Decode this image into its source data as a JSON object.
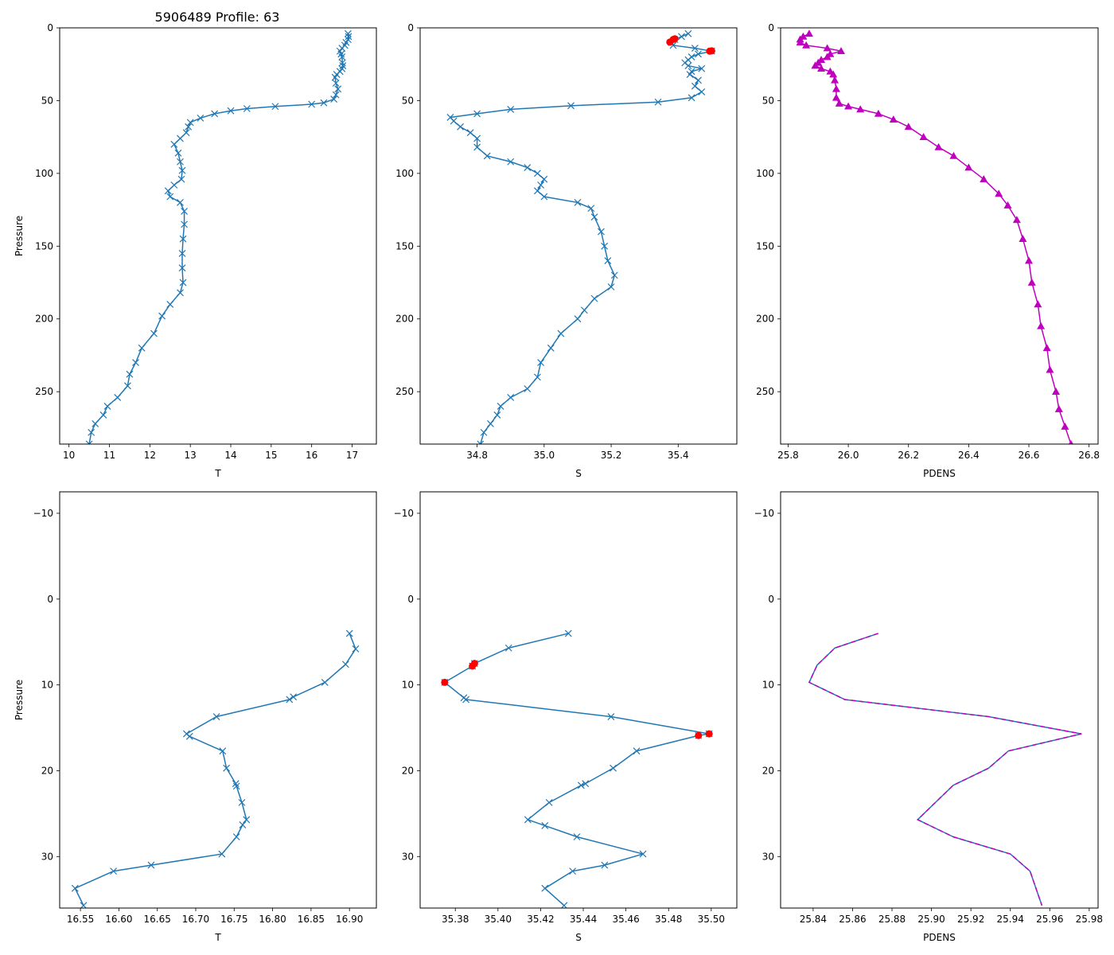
{
  "figure_title": "5906489 Profile: 63",
  "colors": {
    "line": "#1f77b4",
    "flag": "#ff0000",
    "dens": "#bf00bf"
  },
  "chart_data": [
    {
      "id": "t-full",
      "type": "line",
      "title": "5906489 Profile: 63",
      "xlabel": "T",
      "ylabel": "Pressure",
      "xlim": [
        9.77,
        17.6
      ],
      "ylim": [
        286,
        0
      ],
      "xticks": [
        10,
        11,
        12,
        13,
        14,
        15,
        16,
        17
      ],
      "yticks": [
        0,
        50,
        100,
        150,
        200,
        250
      ],
      "marker": "x",
      "series": [
        {
          "name": "T",
          "points": [
            [
              16.9,
              4
            ],
            [
              16.91,
              6
            ],
            [
              16.9,
              8
            ],
            [
              16.85,
              10
            ],
            [
              16.82,
              12
            ],
            [
              16.75,
              14
            ],
            [
              16.7,
              16
            ],
            [
              16.73,
              18
            ],
            [
              16.75,
              20
            ],
            [
              16.76,
              24
            ],
            [
              16.77,
              26
            ],
            [
              16.75,
              28
            ],
            [
              16.7,
              30
            ],
            [
              16.62,
              32
            ],
            [
              16.58,
              34
            ],
            [
              16.6,
              38
            ],
            [
              16.65,
              42
            ],
            [
              16.6,
              46
            ],
            [
              16.55,
              49
            ],
            [
              16.3,
              51.5
            ],
            [
              16.0,
              52.5
            ],
            [
              15.1,
              54
            ],
            [
              14.4,
              55.5
            ],
            [
              14.0,
              57
            ],
            [
              13.6,
              59
            ],
            [
              13.25,
              62
            ],
            [
              13.0,
              65
            ],
            [
              12.95,
              68
            ],
            [
              12.9,
              72
            ],
            [
              12.75,
              76
            ],
            [
              12.6,
              80
            ],
            [
              12.7,
              86
            ],
            [
              12.75,
              92
            ],
            [
              12.8,
              98
            ],
            [
              12.78,
              104
            ],
            [
              12.6,
              108
            ],
            [
              12.45,
              112
            ],
            [
              12.5,
              116
            ],
            [
              12.75,
              120
            ],
            [
              12.85,
              126
            ],
            [
              12.85,
              135
            ],
            [
              12.82,
              145
            ],
            [
              12.8,
              155
            ],
            [
              12.8,
              165
            ],
            [
              12.82,
              175
            ],
            [
              12.75,
              182
            ],
            [
              12.5,
              190
            ],
            [
              12.3,
              198
            ],
            [
              12.1,
              210
            ],
            [
              11.8,
              220
            ],
            [
              11.65,
              230
            ],
            [
              11.5,
              238
            ],
            [
              11.45,
              246
            ],
            [
              11.2,
              254
            ],
            [
              10.95,
              260
            ],
            [
              10.85,
              266
            ],
            [
              10.65,
              272
            ],
            [
              10.55,
              278
            ],
            [
              10.5,
              286
            ]
          ]
        }
      ]
    },
    {
      "id": "s-full",
      "type": "line",
      "title": "",
      "xlabel": "S",
      "ylabel": "",
      "xlim": [
        34.63,
        35.575
      ],
      "ylim": [
        286,
        0
      ],
      "xticks": [
        34.8,
        35.0,
        35.2,
        35.4
      ],
      "yticks": [
        0,
        50,
        100,
        150,
        200,
        250
      ],
      "marker": "x",
      "series": [
        {
          "name": "S",
          "points": [
            [
              35.43,
              4
            ],
            [
              35.41,
              6
            ],
            [
              35.39,
              8
            ],
            [
              35.38,
              10
            ],
            [
              35.385,
              12
            ],
            [
              35.45,
              14
            ],
            [
              35.5,
              16
            ],
            [
              35.46,
              18
            ],
            [
              35.44,
              20
            ],
            [
              35.43,
              22
            ],
            [
              35.42,
              24
            ],
            [
              35.43,
              26
            ],
            [
              35.47,
              28
            ],
            [
              35.44,
              30
            ],
            [
              35.435,
              32
            ],
            [
              35.46,
              36
            ],
            [
              35.45,
              40
            ],
            [
              35.47,
              44
            ],
            [
              35.44,
              48
            ],
            [
              35.34,
              51
            ],
            [
              35.08,
              53.5
            ],
            [
              34.9,
              56
            ],
            [
              34.8,
              59
            ],
            [
              34.72,
              61.5
            ],
            [
              34.73,
              64
            ],
            [
              34.75,
              68
            ],
            [
              34.78,
              72
            ],
            [
              34.8,
              76
            ],
            [
              34.8,
              82
            ],
            [
              34.83,
              88
            ],
            [
              34.9,
              92
            ],
            [
              34.95,
              96
            ],
            [
              34.98,
              100
            ],
            [
              35.0,
              104
            ],
            [
              34.99,
              108
            ],
            [
              34.98,
              112
            ],
            [
              35.0,
              116
            ],
            [
              35.1,
              120
            ],
            [
              35.14,
              124
            ],
            [
              35.15,
              130
            ],
            [
              35.17,
              140
            ],
            [
              35.18,
              150
            ],
            [
              35.19,
              160
            ],
            [
              35.21,
              170
            ],
            [
              35.2,
              178
            ],
            [
              35.15,
              186
            ],
            [
              35.12,
              194
            ],
            [
              35.1,
              200
            ],
            [
              35.05,
              210
            ],
            [
              35.02,
              220
            ],
            [
              34.99,
              230
            ],
            [
              34.98,
              240
            ],
            [
              34.95,
              248
            ],
            [
              34.9,
              254
            ],
            [
              34.87,
              260
            ],
            [
              34.86,
              266
            ],
            [
              34.84,
              272
            ],
            [
              34.82,
              278
            ],
            [
              34.81,
              286
            ]
          ]
        }
      ],
      "flags": [
        [
          35.39,
          7.5
        ],
        [
          35.385,
          8
        ],
        [
          35.375,
          9.8
        ],
        [
          35.494,
          16
        ],
        [
          35.5,
          15.8
        ]
      ]
    },
    {
      "id": "d-full",
      "type": "line",
      "title": "",
      "xlabel": "PDENS",
      "ylabel": "",
      "xlim": [
        25.775,
        26.83
      ],
      "ylim": [
        286,
        0
      ],
      "xticks": [
        25.8,
        26.0,
        26.2,
        26.4,
        26.6,
        26.8
      ],
      "yticks": [
        0,
        50,
        100,
        150,
        200,
        250
      ],
      "marker": "triangle",
      "series": [
        {
          "name": "PDENS",
          "points": [
            [
              25.87,
              4
            ],
            [
              25.85,
              6
            ],
            [
              25.84,
              8
            ],
            [
              25.84,
              10
            ],
            [
              25.86,
              12
            ],
            [
              25.93,
              14
            ],
            [
              25.976,
              16
            ],
            [
              25.94,
              18
            ],
            [
              25.93,
              20
            ],
            [
              25.91,
              22
            ],
            [
              25.9,
              24
            ],
            [
              25.89,
              26
            ],
            [
              25.91,
              28
            ],
            [
              25.94,
              30
            ],
            [
              25.95,
              32
            ],
            [
              25.955,
              36
            ],
            [
              25.96,
              42
            ],
            [
              25.96,
              48
            ],
            [
              25.97,
              52
            ],
            [
              26.0,
              54
            ],
            [
              26.04,
              56
            ],
            [
              26.1,
              59
            ],
            [
              26.15,
              63
            ],
            [
              26.2,
              68
            ],
            [
              26.25,
              75
            ],
            [
              26.3,
              82
            ],
            [
              26.35,
              88
            ],
            [
              26.4,
              96
            ],
            [
              26.45,
              104
            ],
            [
              26.5,
              114
            ],
            [
              26.53,
              122
            ],
            [
              26.56,
              132
            ],
            [
              26.58,
              145
            ],
            [
              26.6,
              160
            ],
            [
              26.61,
              175
            ],
            [
              26.63,
              190
            ],
            [
              26.64,
              205
            ],
            [
              26.66,
              220
            ],
            [
              26.67,
              235
            ],
            [
              26.69,
              250
            ],
            [
              26.7,
              262
            ],
            [
              26.72,
              274
            ],
            [
              26.74,
              286
            ]
          ]
        }
      ]
    },
    {
      "id": "t-zoom",
      "type": "line",
      "title": "",
      "xlabel": "T",
      "ylabel": "Pressure",
      "xlim": [
        16.523,
        16.935
      ],
      "ylim": [
        36,
        -12.5
      ],
      "xticks": [
        16.55,
        16.6,
        16.65,
        16.7,
        16.75,
        16.8,
        16.85,
        16.9
      ],
      "yticks": [
        -10,
        0,
        10,
        20,
        30
      ],
      "marker": "x",
      "series": [
        {
          "name": "T",
          "points": [
            [
              16.9,
              4
            ],
            [
              16.908,
              5.8
            ],
            [
              16.895,
              7.6
            ],
            [
              16.868,
              9.7
            ],
            [
              16.827,
              11.4
            ],
            [
              16.822,
              11.7
            ],
            [
              16.727,
              13.7
            ],
            [
              16.688,
              15.7
            ],
            [
              16.692,
              16.0
            ],
            [
              16.735,
              17.7
            ],
            [
              16.74,
              19.7
            ],
            [
              16.752,
              21.5
            ],
            [
              16.753,
              21.8
            ],
            [
              16.76,
              23.7
            ],
            [
              16.766,
              25.7
            ],
            [
              16.761,
              26.3
            ],
            [
              16.753,
              27.7
            ],
            [
              16.734,
              29.7
            ],
            [
              16.642,
              31.0
            ],
            [
              16.593,
              31.7
            ],
            [
              16.543,
              33.7
            ],
            [
              16.554,
              35.7
            ]
          ]
        }
      ]
    },
    {
      "id": "s-zoom",
      "type": "line",
      "title": "",
      "xlabel": "S",
      "ylabel": "",
      "xlim": [
        35.3635,
        35.512
      ],
      "ylim": [
        36,
        -12.5
      ],
      "xticks": [
        35.38,
        35.4,
        35.42,
        35.44,
        35.46,
        35.48,
        35.5
      ],
      "yticks": [
        -10,
        0,
        10,
        20,
        30
      ],
      "marker": "x",
      "series": [
        {
          "name": "S",
          "points": [
            [
              35.433,
              4.0
            ],
            [
              35.405,
              5.7
            ],
            [
              35.389,
              7.5
            ],
            [
              35.388,
              7.8
            ],
            [
              35.375,
              9.7
            ],
            [
              35.384,
              11.5
            ],
            [
              35.385,
              11.7
            ],
            [
              35.453,
              13.7
            ],
            [
              35.499,
              15.7
            ],
            [
              35.494,
              15.9
            ],
            [
              35.465,
              17.7
            ],
            [
              35.454,
              19.7
            ],
            [
              35.441,
              21.5
            ],
            [
              35.439,
              21.7
            ],
            [
              35.424,
              23.7
            ],
            [
              35.414,
              25.7
            ],
            [
              35.422,
              26.4
            ],
            [
              35.437,
              27.7
            ],
            [
              35.468,
              29.7
            ],
            [
              35.45,
              31.0
            ],
            [
              35.435,
              31.7
            ],
            [
              35.422,
              33.7
            ],
            [
              35.431,
              35.7
            ]
          ]
        }
      ],
      "flags": [
        [
          35.389,
          7.5
        ],
        [
          35.388,
          7.8
        ],
        [
          35.375,
          9.7
        ],
        [
          35.494,
          15.9
        ],
        [
          35.499,
          15.7
        ]
      ]
    },
    {
      "id": "d-zoom",
      "type": "line",
      "title": "",
      "xlabel": "PDENS",
      "ylabel": "",
      "xlim": [
        25.8235,
        25.9845
      ],
      "ylim": [
        36,
        -12.5
      ],
      "xticks": [
        25.84,
        25.86,
        25.88,
        25.9,
        25.92,
        25.94,
        25.96,
        25.98
      ],
      "yticks": [
        -10,
        0,
        10,
        20,
        30
      ],
      "marker": "none",
      "series": [
        {
          "name": "PDENS",
          "points": [
            [
              25.873,
              4.0
            ],
            [
              25.851,
              5.7
            ],
            [
              25.842,
              7.7
            ],
            [
              25.838,
              9.7
            ],
            [
              25.856,
              11.7
            ],
            [
              25.929,
              13.7
            ],
            [
              25.976,
              15.7
            ],
            [
              25.939,
              17.7
            ],
            [
              25.929,
              19.7
            ],
            [
              25.911,
              21.7
            ],
            [
              25.902,
              23.7
            ],
            [
              25.893,
              25.7
            ],
            [
              25.911,
              27.7
            ],
            [
              25.94,
              29.7
            ],
            [
              25.95,
              31.7
            ],
            [
              25.953,
              33.7
            ],
            [
              25.956,
              35.7
            ]
          ]
        }
      ],
      "overlay": {
        "style": "dashed",
        "color": "dens"
      }
    }
  ]
}
